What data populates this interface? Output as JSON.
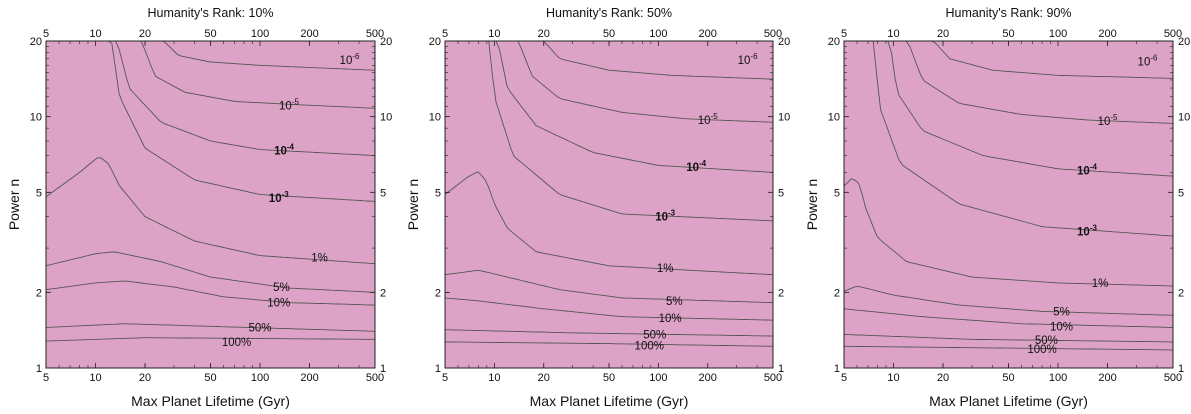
{
  "chart_data": [
    {
      "type": "contour",
      "title": "Humanity's Rank: 10%",
      "xlabel": "Max Planet Lifetime (Gyr)",
      "ylabel": "Power n",
      "xscale": "log",
      "yscale": "log",
      "xlim": [
        5,
        500
      ],
      "ylim": [
        1,
        20
      ],
      "x_ticks": [
        "5",
        "10",
        "20",
        "50",
        "100",
        "200",
        "500"
      ],
      "y_ticks": [
        "1",
        "2",
        "5",
        "10",
        "20"
      ],
      "y_ticks_right": [
        "1",
        "2",
        "5",
        "10",
        "20"
      ],
      "levels": [
        {
          "label": "100%",
          "bold": false,
          "x": [
            5,
            20,
            500
          ],
          "y": [
            1.28,
            1.32,
            1.3
          ]
        },
        {
          "label": "50%",
          "bold": false,
          "x": [
            5,
            15,
            500
          ],
          "y": [
            1.45,
            1.5,
            1.4
          ]
        },
        {
          "label": "10%",
          "bold": false,
          "x": [
            5,
            10,
            15,
            30,
            60,
            150,
            500
          ],
          "y": [
            2.05,
            2.18,
            2.22,
            2.1,
            1.92,
            1.82,
            1.78
          ]
        },
        {
          "label": "5%",
          "bold": false,
          "x": [
            5,
            10,
            13,
            25,
            50,
            150,
            500
          ],
          "y": [
            2.55,
            2.85,
            2.9,
            2.65,
            2.3,
            2.08,
            2.0
          ]
        },
        {
          "label": "1%",
          "bold": false,
          "x": [
            5,
            8,
            10.5,
            12,
            14,
            20,
            40,
            100,
            500
          ],
          "y": [
            4.8,
            6.0,
            6.95,
            6.5,
            5.3,
            4.0,
            3.2,
            2.8,
            2.6
          ]
        },
        {
          "label": "10^-3",
          "bold": true,
          "x": [
            12.5,
            14,
            20,
            40,
            100,
            500
          ],
          "y": [
            20,
            12,
            7.5,
            5.6,
            4.9,
            4.6
          ]
        },
        {
          "label": "10^-4",
          "bold": true,
          "x": [
            13.5,
            16,
            25,
            50,
            100,
            500
          ],
          "y": [
            20,
            13,
            9.5,
            8.0,
            7.4,
            7.0
          ]
        },
        {
          "label": "10^-5",
          "bold": false,
          "x": [
            19,
            23,
            35,
            70,
            150,
            500
          ],
          "y": [
            20,
            14.5,
            12.5,
            11.5,
            11.2,
            10.8
          ]
        },
        {
          "label": "10^-6",
          "bold": false,
          "x": [
            26,
            32,
            50,
            100,
            500
          ],
          "y": [
            20,
            17.5,
            16.5,
            16.0,
            15.3
          ]
        }
      ],
      "level_labels": [
        {
          "text": "100%",
          "base": "",
          "exp": "",
          "x": 72,
          "y": 1.27
        },
        {
          "text": "50%",
          "base": "",
          "exp": "",
          "x": 100,
          "y": 1.45
        },
        {
          "text": "10%",
          "base": "",
          "exp": "",
          "x": 130,
          "y": 1.82
        },
        {
          "text": "5%",
          "base": "",
          "exp": "",
          "x": 135,
          "y": 2.1
        },
        {
          "text": "1%",
          "base": "",
          "exp": "",
          "x": 230,
          "y": 2.75
        },
        {
          "text": "",
          "base": "10",
          "exp": "-3",
          "x": 130,
          "y": 4.75
        },
        {
          "text": "",
          "base": "10",
          "exp": "-4",
          "x": 140,
          "y": 7.35
        },
        {
          "text": "",
          "base": "10",
          "exp": "-5",
          "x": 150,
          "y": 11.1
        },
        {
          "text": "",
          "base": "10",
          "exp": "-6",
          "x": 350,
          "y": 16.8
        }
      ]
    },
    {
      "type": "contour",
      "title": "Humanity's Rank: 50%",
      "xlabel": "Max Planet Lifetime (Gyr)",
      "ylabel": "Power n",
      "xscale": "log",
      "yscale": "log",
      "xlim": [
        5,
        500
      ],
      "ylim": [
        1,
        20
      ],
      "x_ticks": [
        "5",
        "10",
        "20",
        "50",
        "100",
        "200",
        "500"
      ],
      "y_ticks": [
        "1",
        "2",
        "5",
        "10",
        "20"
      ],
      "y_ticks_right": [
        "1",
        "2",
        "5",
        "10",
        "20"
      ],
      "levels": [
        {
          "label": "100%",
          "bold": false,
          "x": [
            5,
            50,
            500
          ],
          "y": [
            1.27,
            1.25,
            1.22
          ]
        },
        {
          "label": "50%",
          "bold": false,
          "x": [
            5,
            30,
            500
          ],
          "y": [
            1.42,
            1.38,
            1.34
          ]
        },
        {
          "label": "10%",
          "bold": false,
          "x": [
            5,
            8,
            20,
            60,
            500
          ],
          "y": [
            1.9,
            1.85,
            1.72,
            1.6,
            1.55
          ]
        },
        {
          "label": "5%",
          "bold": false,
          "x": [
            5,
            8,
            12,
            25,
            60,
            500
          ],
          "y": [
            2.35,
            2.45,
            2.3,
            2.05,
            1.9,
            1.82
          ]
        },
        {
          "label": "1%",
          "bold": false,
          "x": [
            5,
            7,
            8,
            9,
            10,
            12,
            18,
            50,
            500
          ],
          "y": [
            4.9,
            5.8,
            6.05,
            5.5,
            4.5,
            3.6,
            2.9,
            2.55,
            2.35
          ]
        },
        {
          "label": "10^-3",
          "bold": true,
          "x": [
            9.3,
            10,
            13,
            25,
            60,
            500
          ],
          "y": [
            20,
            12,
            7.0,
            4.9,
            4.1,
            3.85
          ]
        },
        {
          "label": "10^-4",
          "bold": true,
          "x": [
            10.5,
            12,
            18,
            40,
            100,
            500
          ],
          "y": [
            20,
            13,
            9.2,
            7.2,
            6.4,
            6.0
          ]
        },
        {
          "label": "10^-5",
          "bold": false,
          "x": [
            14,
            17,
            25,
            60,
            150,
            500
          ],
          "y": [
            20,
            14.5,
            11.8,
            10.4,
            9.8,
            9.5
          ]
        },
        {
          "label": "10^-6",
          "bold": false,
          "x": [
            20,
            25,
            50,
            120,
            500
          ],
          "y": [
            20,
            17,
            15.3,
            14.6,
            14.1
          ]
        }
      ],
      "level_labels": [
        {
          "text": "100%",
          "base": "",
          "exp": "",
          "x": 88,
          "y": 1.23
        },
        {
          "text": "50%",
          "base": "",
          "exp": "",
          "x": 95,
          "y": 1.36
        },
        {
          "text": "10%",
          "base": "",
          "exp": "",
          "x": 118,
          "y": 1.58
        },
        {
          "text": "5%",
          "base": "",
          "exp": "",
          "x": 125,
          "y": 1.85
        },
        {
          "text": "1%",
          "base": "",
          "exp": "",
          "x": 110,
          "y": 2.5
        },
        {
          "text": "",
          "base": "10",
          "exp": "-3",
          "x": 110,
          "y": 4.0
        },
        {
          "text": "",
          "base": "10",
          "exp": "-4",
          "x": 170,
          "y": 6.3
        },
        {
          "text": "",
          "base": "10",
          "exp": "-5",
          "x": 200,
          "y": 9.7
        },
        {
          "text": "",
          "base": "10",
          "exp": "-6",
          "x": 350,
          "y": 16.8
        }
      ]
    },
    {
      "type": "contour",
      "title": "Humanity's Rank: 90%",
      "xlabel": "Max Planet Lifetime (Gyr)",
      "ylabel": "Power n",
      "xscale": "log",
      "yscale": "log",
      "xlim": [
        5,
        500
      ],
      "ylim": [
        1,
        20
      ],
      "x_ticks": [
        "5",
        "10",
        "20",
        "50",
        "100",
        "200",
        "500"
      ],
      "y_ticks": [
        "1",
        "2",
        "5",
        "10",
        "20"
      ],
      "y_ticks_right": [
        "1",
        "2",
        "5",
        "10",
        "20"
      ],
      "levels": [
        {
          "label": "100%",
          "bold": false,
          "x": [
            5,
            50,
            500
          ],
          "y": [
            1.22,
            1.2,
            1.18
          ]
        },
        {
          "label": "50%",
          "bold": false,
          "x": [
            5,
            30,
            500
          ],
          "y": [
            1.36,
            1.3,
            1.27
          ]
        },
        {
          "label": "10%",
          "bold": false,
          "x": [
            5,
            15,
            60,
            500
          ],
          "y": [
            1.72,
            1.6,
            1.5,
            1.45
          ]
        },
        {
          "label": "5%",
          "bold": false,
          "x": [
            5,
            6,
            10,
            25,
            80,
            500
          ],
          "y": [
            2.02,
            2.12,
            1.95,
            1.78,
            1.68,
            1.62
          ]
        },
        {
          "label": "1%",
          "bold": false,
          "x": [
            5,
            5.6,
            6.2,
            6.8,
            8,
            12,
            30,
            100,
            500
          ],
          "y": [
            5.3,
            5.7,
            5.4,
            4.3,
            3.3,
            2.65,
            2.3,
            2.18,
            2.12
          ]
        },
        {
          "label": "10^-3",
          "bold": true,
          "x": [
            7.6,
            8.2,
            11,
            25,
            80,
            500
          ],
          "y": [
            20,
            11,
            6.5,
            4.5,
            3.65,
            3.35
          ]
        },
        {
          "label": "10^-4",
          "bold": true,
          "x": [
            9.5,
            10.5,
            15,
            35,
            100,
            500
          ],
          "y": [
            20,
            12.5,
            8.8,
            7.0,
            6.2,
            5.8
          ]
        },
        {
          "label": "10^-5",
          "bold": false,
          "x": [
            12.2,
            15,
            25,
            60,
            150,
            500
          ],
          "y": [
            20,
            14,
            11.3,
            10.2,
            9.7,
            9.4
          ]
        },
        {
          "label": "10^-6",
          "bold": false,
          "x": [
            17.5,
            22,
            40,
            100,
            500
          ],
          "y": [
            20,
            17,
            15.3,
            14.6,
            14.2
          ]
        }
      ],
      "level_labels": [
        {
          "text": "100%",
          "base": "",
          "exp": "",
          "x": 80,
          "y": 1.19
        },
        {
          "text": "50%",
          "base": "",
          "exp": "",
          "x": 85,
          "y": 1.29
        },
        {
          "text": "10%",
          "base": "",
          "exp": "",
          "x": 105,
          "y": 1.46
        },
        {
          "text": "5%",
          "base": "",
          "exp": "",
          "x": 105,
          "y": 1.68
        },
        {
          "text": "1%",
          "base": "",
          "exp": "",
          "x": 180,
          "y": 2.18
        },
        {
          "text": "",
          "base": "10",
          "exp": "-3",
          "x": 150,
          "y": 3.5
        },
        {
          "text": "",
          "base": "10",
          "exp": "-4",
          "x": 150,
          "y": 6.1
        },
        {
          "text": "",
          "base": "10",
          "exp": "-5",
          "x": 200,
          "y": 9.6
        },
        {
          "text": "",
          "base": "10",
          "exp": "-6",
          "x": 350,
          "y": 16.6
        }
      ]
    }
  ],
  "colors": {
    "band_100": "#dda3c6",
    "band_50": "#e6b2a9",
    "band_10": "#ebbfa0",
    "band_5": "#f0c99e",
    "band_1": "#f3d59b",
    "band_e3": "#f5e19c",
    "band_e4": "#f2ed9e",
    "band_e5": "#dce9c4",
    "band_e6": "#b4d9e4",
    "band_top": "#7fb4e8",
    "contour_line": "#555555"
  }
}
